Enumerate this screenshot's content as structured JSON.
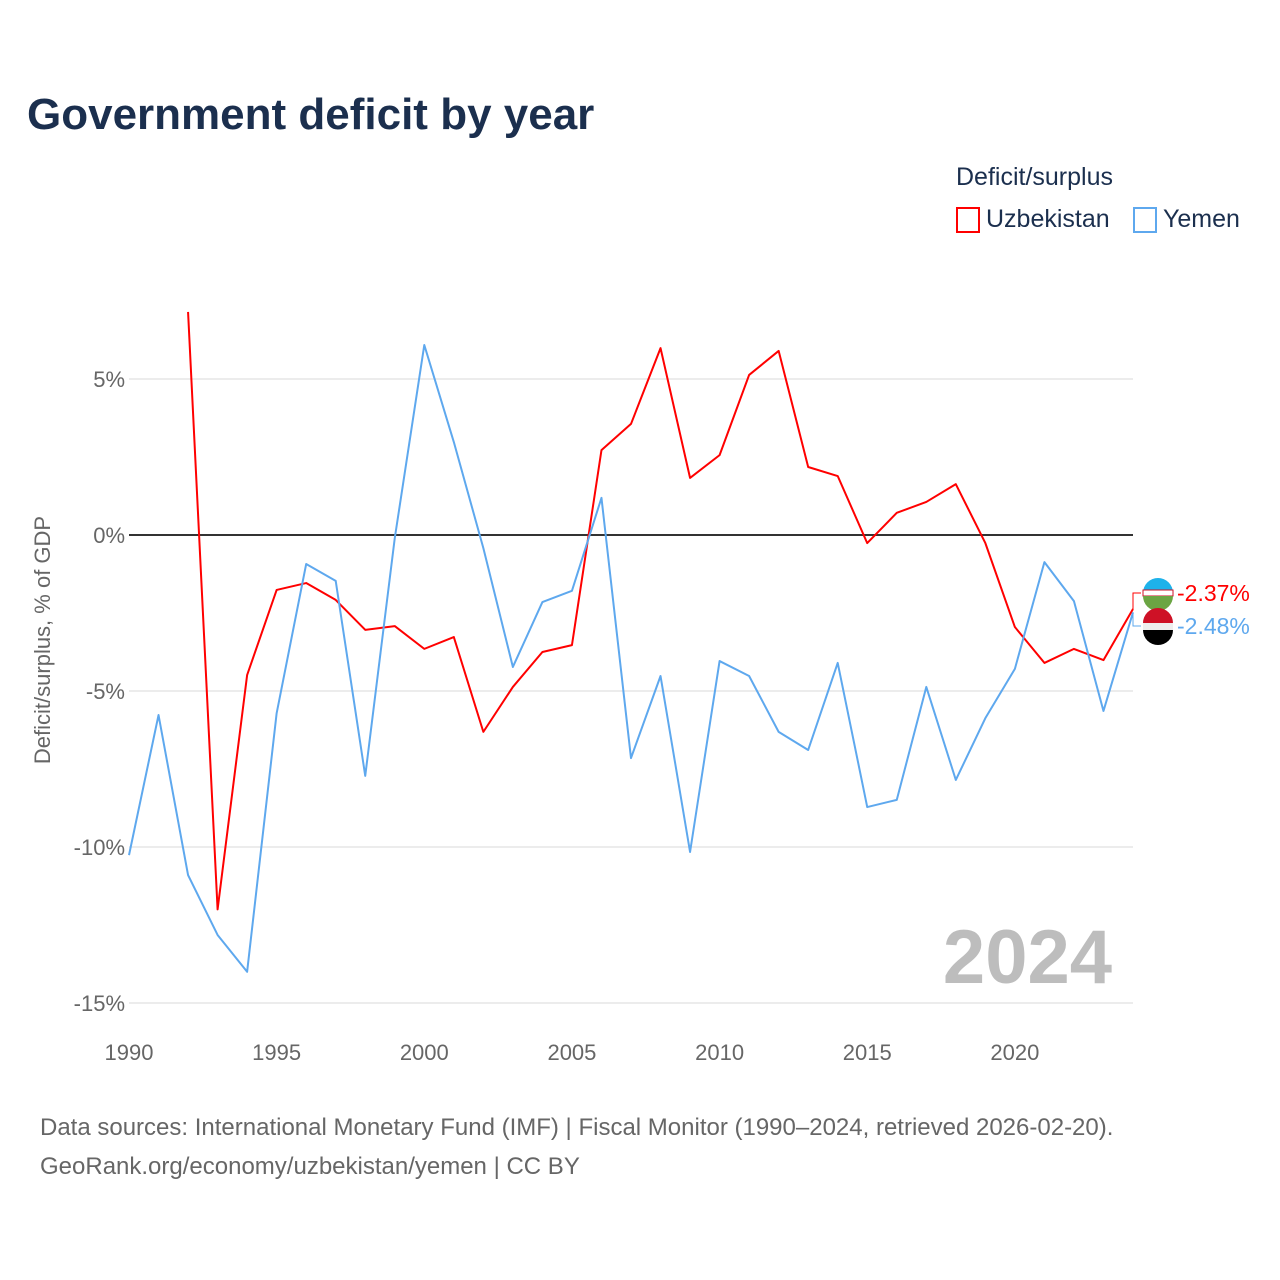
{
  "chart_data": {
    "type": "line",
    "title": "Government deficit by year",
    "ylabel": "Deficit/surplus, % of GDP",
    "xlabel": "",
    "xlim": [
      1990,
      2024
    ],
    "ylim": [
      -15,
      7.5
    ],
    "x_ticks": [
      1990,
      1995,
      2000,
      2005,
      2010,
      2015,
      2020
    ],
    "x_tick_labels": [
      "1990",
      "1995",
      "2000",
      "2005",
      "2010",
      "2015",
      "2020"
    ],
    "y_ticks": [
      5,
      0,
      -5,
      -10,
      -15
    ],
    "y_tick_labels": [
      "5%",
      "0%",
      "-5%",
      "-10%",
      "-15%"
    ],
    "legend_title": "Deficit/surplus",
    "legend_position": "top-right",
    "watermark_year": "2024",
    "series": [
      {
        "name": "Uzbekistan",
        "color": "#ff0000",
        "end_label": "-2.37%",
        "flag": "uzbekistan-flag",
        "x": [
          1992,
          1993,
          1994,
          1995,
          1996,
          1997,
          1998,
          1999,
          2000,
          2001,
          2002,
          2003,
          2004,
          2005,
          2006,
          2007,
          2008,
          2009,
          2010,
          2011,
          2012,
          2013,
          2014,
          2015,
          2016,
          2017,
          2018,
          2019,
          2020,
          2021,
          2022,
          2023,
          2024
        ],
        "values": [
          7.15,
          -12.0,
          -4.49,
          -1.76,
          -1.54,
          -2.08,
          -3.04,
          -2.92,
          -3.65,
          -3.27,
          -6.31,
          -4.87,
          -3.75,
          -3.53,
          2.72,
          3.56,
          5.99,
          1.83,
          2.56,
          5.13,
          5.9,
          2.18,
          1.89,
          -0.26,
          0.71,
          1.06,
          1.63,
          -0.26,
          -2.95,
          -4.1,
          -3.65,
          -4.01,
          -2.37
        ]
      },
      {
        "name": "Yemen",
        "color": "#5ea8ee",
        "end_label": "-2.48%",
        "flag": "yemen-flag",
        "x": [
          1990,
          1991,
          1992,
          1993,
          1994,
          1995,
          1996,
          1997,
          1998,
          1999,
          2000,
          2001,
          2002,
          2003,
          2004,
          2005,
          2006,
          2007,
          2008,
          2009,
          2010,
          2011,
          2012,
          2013,
          2014,
          2015,
          2016,
          2017,
          2018,
          2019,
          2020,
          2021,
          2022,
          2023,
          2024
        ],
        "values": [
          -10.26,
          -5.77,
          -10.9,
          -12.82,
          -14.0,
          -5.71,
          -0.93,
          -1.47,
          -7.72,
          -0.1,
          6.09,
          2.98,
          -0.42,
          -4.23,
          -2.15,
          -1.79,
          1.19,
          -7.15,
          -4.52,
          -10.16,
          -4.04,
          -4.52,
          -6.31,
          -6.89,
          -4.1,
          -8.72,
          -8.49,
          -4.87,
          -7.85,
          -5.87,
          -4.29,
          -0.87,
          -2.12,
          -5.64,
          -2.48
        ]
      }
    ]
  },
  "footer": {
    "line1": "Data sources: International Monetary Fund (IMF) | Fiscal Monitor (1990–2024, retrieved 2026-02-20).",
    "line2": "GeoRank.org/economy/uzbekistan/yemen | CC BY"
  }
}
